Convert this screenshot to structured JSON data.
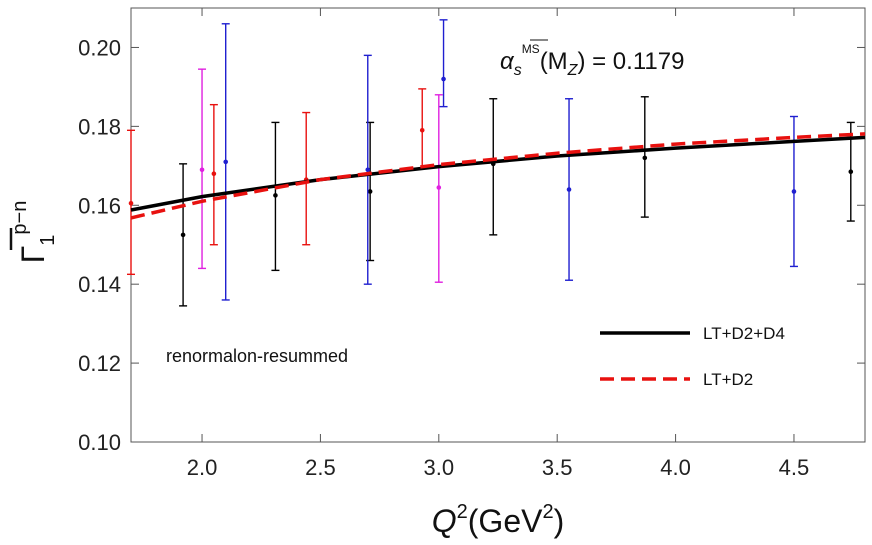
{
  "chart_data": {
    "type": "scatter",
    "title": "",
    "xlim": [
      1.7,
      4.8
    ],
    "ylim": [
      0.1,
      0.21
    ],
    "x_ticks": [
      2.0,
      2.5,
      3.0,
      3.5,
      4.0,
      4.5
    ],
    "y_ticks": [
      0.1,
      0.12,
      0.14,
      0.16,
      0.18,
      0.2
    ],
    "xlabel": {
      "main": "Q",
      "sup1": "2",
      "paren": "(GeV",
      "sup2": "2",
      "close": ")"
    },
    "ylabel": {
      "main": "Γ",
      "sub": "1",
      "sup": "p−n"
    },
    "annotation": {
      "main": "α",
      "sub": "s",
      "sup": "MS",
      "rest": "(M",
      "sub2": "Z",
      "value": ") = 0.1179"
    },
    "text_note": "renormalon-resummed",
    "legend": {
      "placement": "right",
      "entries": [
        {
          "label": "LT+D2+D4",
          "color": "#000000",
          "dash": "solid"
        },
        {
          "label": "LT+D2",
          "color": "#e8110f",
          "dash": "dashed"
        }
      ]
    },
    "series": [
      {
        "color": "#000000",
        "points": [
          {
            "x": 1.92,
            "y": 0.1525,
            "ylo": 0.1345,
            "yhi": 0.1705
          },
          {
            "x": 2.31,
            "y": 0.1625,
            "ylo": 0.1435,
            "yhi": 0.181
          },
          {
            "x": 2.71,
            "y": 0.1635,
            "ylo": 0.146,
            "yhi": 0.181
          },
          {
            "x": 3.23,
            "y": 0.1705,
            "ylo": 0.1525,
            "yhi": 0.187
          },
          {
            "x": 3.87,
            "y": 0.172,
            "ylo": 0.157,
            "yhi": 0.1875
          },
          {
            "x": 4.74,
            "y": 0.1685,
            "ylo": 0.156,
            "yhi": 0.181
          }
        ]
      },
      {
        "color": "#e8110f",
        "points": [
          {
            "x": 1.7,
            "y": 0.1605,
            "ylo": 0.1425,
            "yhi": 0.179
          },
          {
            "x": 2.05,
            "y": 0.168,
            "ylo": 0.15,
            "yhi": 0.1855
          },
          {
            "x": 2.44,
            "y": 0.1665,
            "ylo": 0.15,
            "yhi": 0.1835
          },
          {
            "x": 2.93,
            "y": 0.179,
            "ylo": 0.1695,
            "yhi": 0.1895
          }
        ]
      },
      {
        "color": "#e020e0",
        "points": [
          {
            "x": 2.0,
            "y": 0.169,
            "ylo": 0.144,
            "yhi": 0.1945
          },
          {
            "x": 3.0,
            "y": 0.1645,
            "ylo": 0.1405,
            "yhi": 0.188
          }
        ]
      },
      {
        "color": "#1f1fd0",
        "points": [
          {
            "x": 2.1,
            "y": 0.171,
            "ylo": 0.136,
            "yhi": 0.206
          },
          {
            "x": 2.7,
            "y": 0.169,
            "ylo": 0.14,
            "yhi": 0.198
          },
          {
            "x": 3.02,
            "y": 0.192,
            "ylo": 0.185,
            "yhi": 0.207
          },
          {
            "x": 3.55,
            "y": 0.164,
            "ylo": 0.141,
            "yhi": 0.187
          },
          {
            "x": 4.5,
            "y": 0.1635,
            "ylo": 0.1445,
            "yhi": 0.1825
          }
        ]
      }
    ],
    "curves": [
      {
        "name": "LT+D2+D4",
        "color": "#000000",
        "dash": "solid",
        "x": [
          1.7,
          2.0,
          2.5,
          3.0,
          3.5,
          4.0,
          4.5,
          4.8
        ],
        "y": [
          0.1588,
          0.1622,
          0.1665,
          0.1698,
          0.1725,
          0.1745,
          0.1762,
          0.1772
        ]
      },
      {
        "name": "LT+D2",
        "color": "#e8110f",
        "dash": "dashed",
        "x": [
          1.7,
          2.0,
          2.5,
          3.0,
          3.5,
          4.0,
          4.5,
          4.8
        ],
        "y": [
          0.1568,
          0.161,
          0.1665,
          0.1703,
          0.1732,
          0.1755,
          0.1772,
          0.1781
        ]
      }
    ]
  }
}
